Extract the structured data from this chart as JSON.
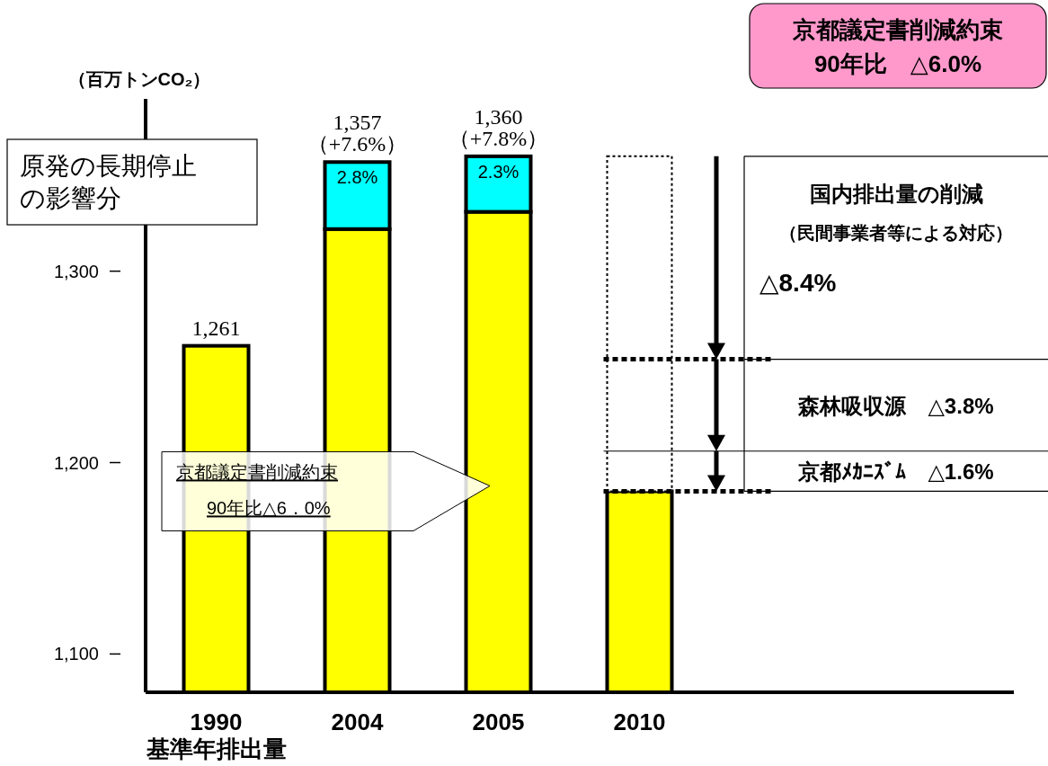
{
  "chart_data": {
    "type": "bar",
    "stacked": true,
    "ylabel": "（百万トンCO₂）",
    "categories": [
      "1990\n基準年排出量",
      "2004",
      "2005",
      "2010"
    ],
    "series": [
      {
        "color": "#ffff00",
        "values": [
          1261,
          1322,
          1331,
          1185
        ]
      },
      {
        "color": "#00ffff",
        "values": [
          null,
          35,
          29,
          null
        ],
        "base": [
          null,
          1322,
          1331,
          null
        ]
      },
      {
        "color": "#ffffff",
        "values": [
          null,
          null,
          null,
          175
        ],
        "base": [
          null,
          null,
          null,
          1185
        ],
        "line_style": "dotted"
      }
    ],
    "totals": [
      "1,261",
      "1,357\n（+7.6%）",
      "1,360\n（+7.8%）",
      null
    ],
    "ylim": [
      1080,
      1390
    ],
    "yticks": [
      {
        "value": 1100,
        "label": "1,100"
      },
      {
        "value": 1200,
        "label": "1,200"
      },
      {
        "value": 1300,
        "label": "1,300"
      }
    ],
    "ref_lines": [
      {
        "axis": "y",
        "value": 1254,
        "line_style": "dotted"
      },
      {
        "axis": "y",
        "value": 1206,
        "label": "森林吸収源　△3.8%",
        "line_style": "solid"
      },
      {
        "axis": "y",
        "value": 1185,
        "label": "京都ﾒｶﾆｽﾞﾑ　△1.6%",
        "line_style": "dotted"
      }
    ],
    "annotations": [
      "京都議定書削減約束",
      "90年比　△6.0%",
      "原発の長期停止の影響分",
      "国内排出量の削減",
      "（民間事業者等による対応）",
      "△8.4%",
      "京都議定書削減約束",
      "90年比△6．0%",
      "2.8%",
      "2.3%"
    ]
  }
}
